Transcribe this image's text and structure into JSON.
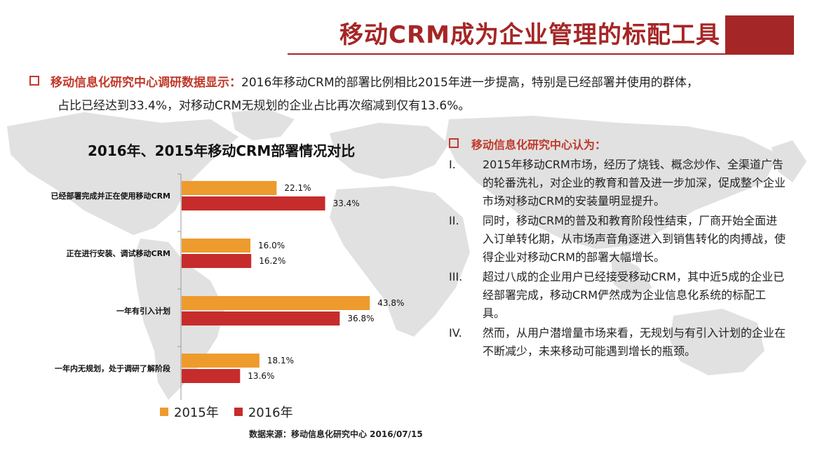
{
  "header": {
    "title": "移动CRM成为企业管理的标配工具"
  },
  "intro": {
    "lead": "移动信息化研究中心调研数据显示：",
    "line1": "2016年移动CRM的部署比例相比2015年进一步提高，特别是已经部署并使用的群体，",
    "line2": "占比已经达到33.4%，对移动CRM无规划的企业占比再次缩减到仅有13.6%。"
  },
  "colors": {
    "accent": "#a52626",
    "series_2015": "#ee9b2d",
    "series_2016": "#c62c2b",
    "map": "#e1e1e1"
  },
  "chart_data": {
    "type": "bar",
    "orientation": "horizontal",
    "title": "2016年、2015年移动CRM部署情况对比",
    "categories": [
      "已经部署完成并正在使用移动CRM",
      "正在进行安装、调试移动CRM",
      "一年有引入计划",
      "一年内无规划，处于调研了解阶段"
    ],
    "series": [
      {
        "name": "2015年",
        "values": [
          22.1,
          16.0,
          43.8,
          18.1
        ],
        "labels": [
          "22.1%",
          "16.0%",
          "43.8%",
          "18.1%"
        ]
      },
      {
        "name": "2016年",
        "values": [
          33.4,
          16.2,
          36.8,
          13.6
        ],
        "labels": [
          "33.4%",
          "16.2%",
          "36.8%",
          "13.6%"
        ]
      }
    ],
    "xlim": [
      0,
      50
    ],
    "legend_position": "bottom",
    "grid": false
  },
  "legend": {
    "label_2015": "2015年",
    "label_2016": "2016年"
  },
  "source": "数据来源：移动信息化研究中心 2016/07/15",
  "right_panel": {
    "heading": "移动信息化研究中心认为：",
    "points": [
      {
        "num": "I.",
        "text": "2015年移动CRM市场，经历了烧钱、概念炒作、全渠道广告的轮番洗礼，对企业的教育和普及进一步加深，促成整个企业市场对移动CRM的安装量明显提升。"
      },
      {
        "num": "II.",
        "text": "同时，移动CRM的普及和教育阶段性结束，厂商开始全面进入订单转化期，从市场声音角逐进入到销售转化的肉搏战，使得企业对移动CRM的部署大幅增长。"
      },
      {
        "num": "III.",
        "text": "超过八成的企业用户已经接受移动CRM，其中近5成的企业已经部署完成，移动CRM俨然成为企业信息化系统的标配工具。"
      },
      {
        "num": "IV.",
        "text": "然而，从用户潜增量市场来看，无规划与有引入计划的企业在不断减少，未来移动可能遇到增长的瓶颈。"
      }
    ]
  }
}
